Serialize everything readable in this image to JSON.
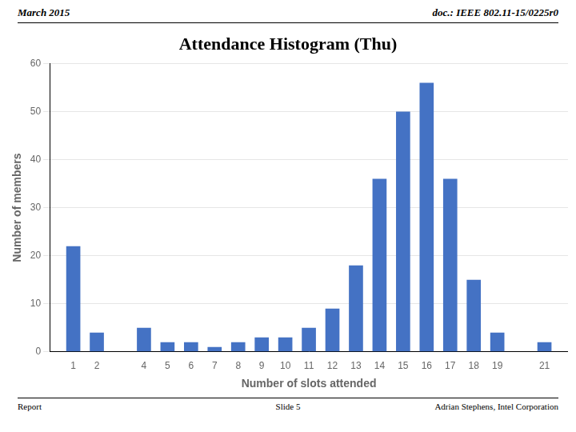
{
  "chart_data": {
    "type": "bar",
    "title": "Attendance Histogram (Thu)",
    "annotations": {
      "header": [
        "March 2015",
        "doc.: IEEE 802.11-15/0225r0"
      ],
      "footer": [
        "Report",
        "Slide 5",
        "Adrian Stephens, Intel Corporation"
      ]
    },
    "xlabel": "Number of slots attended",
    "ylabel": "Number of members",
    "x": [
      1,
      2,
      4,
      5,
      6,
      7,
      8,
      9,
      10,
      11,
      12,
      13,
      14,
      15,
      16,
      17,
      18,
      19,
      21
    ],
    "values": [
      22,
      4,
      5,
      2,
      2,
      1,
      2,
      3,
      3,
      5,
      9,
      18,
      36,
      50,
      56,
      36,
      15,
      4,
      2
    ],
    "color": "#4472C4",
    "xlim": [
      0,
      22
    ],
    "xticks": [
      1,
      2,
      4,
      5,
      6,
      7,
      8,
      9,
      10,
      11,
      12,
      13,
      14,
      15,
      16,
      17,
      18,
      19,
      21
    ],
    "ylim": [
      0,
      60
    ],
    "yticks": [
      0,
      10,
      20,
      30,
      40,
      50,
      60
    ],
    "grid": "y"
  }
}
